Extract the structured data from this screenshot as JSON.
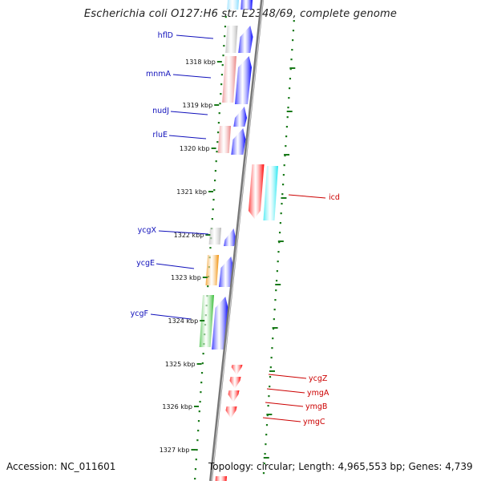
{
  "title": "Escherichia coli O127:H6 str. E2348/69, complete genome",
  "accession": "Accession: NC_011601",
  "topology": "Topology: circular; Length: 4,965,553 bp; Genes: 4,739",
  "colors": {
    "backbone": "#777777",
    "dots": "#1a7a1a",
    "forward_cds": "#0000ff",
    "reverse_cds": "#ff0000",
    "left_label": "#1010bb",
    "right_label": "#cc0000",
    "cog_gray": "#b8b8b8",
    "cog_salmon": "#e88080",
    "cog_orange": "#f08c00",
    "cog_green": "#33bb33",
    "cog_cyan": "#22e6f0",
    "cog_lightblue": "#88ddff"
  },
  "scale": {
    "unit": "kbp",
    "ticks": [
      "1318 kbp",
      "1319 kbp",
      "1320 kbp",
      "1321 kbp",
      "1322 kbp",
      "1323 kbp",
      "1324 kbp",
      "1325 kbp",
      "1326 kbp",
      "1327 kbp"
    ]
  },
  "genes_left": [
    {
      "name": "hflD",
      "color": "cog_gray"
    },
    {
      "name": "mnmA",
      "color": "cog_salmon"
    },
    {
      "name": "nudJ",
      "color": "none"
    },
    {
      "name": "rluE",
      "color": "cog_salmon"
    },
    {
      "name": "ycgX",
      "color": "cog_gray"
    },
    {
      "name": "ycgE",
      "color": "cog_orange"
    },
    {
      "name": "ycgF",
      "color": "cog_green"
    }
  ],
  "genes_right": [
    {
      "name": "icd",
      "color": "cog_cyan"
    },
    {
      "name": "ycgZ",
      "color": "none"
    },
    {
      "name": "ymgA",
      "color": "none"
    },
    {
      "name": "ymgB",
      "color": "none"
    },
    {
      "name": "ymgC",
      "color": "none"
    }
  ]
}
